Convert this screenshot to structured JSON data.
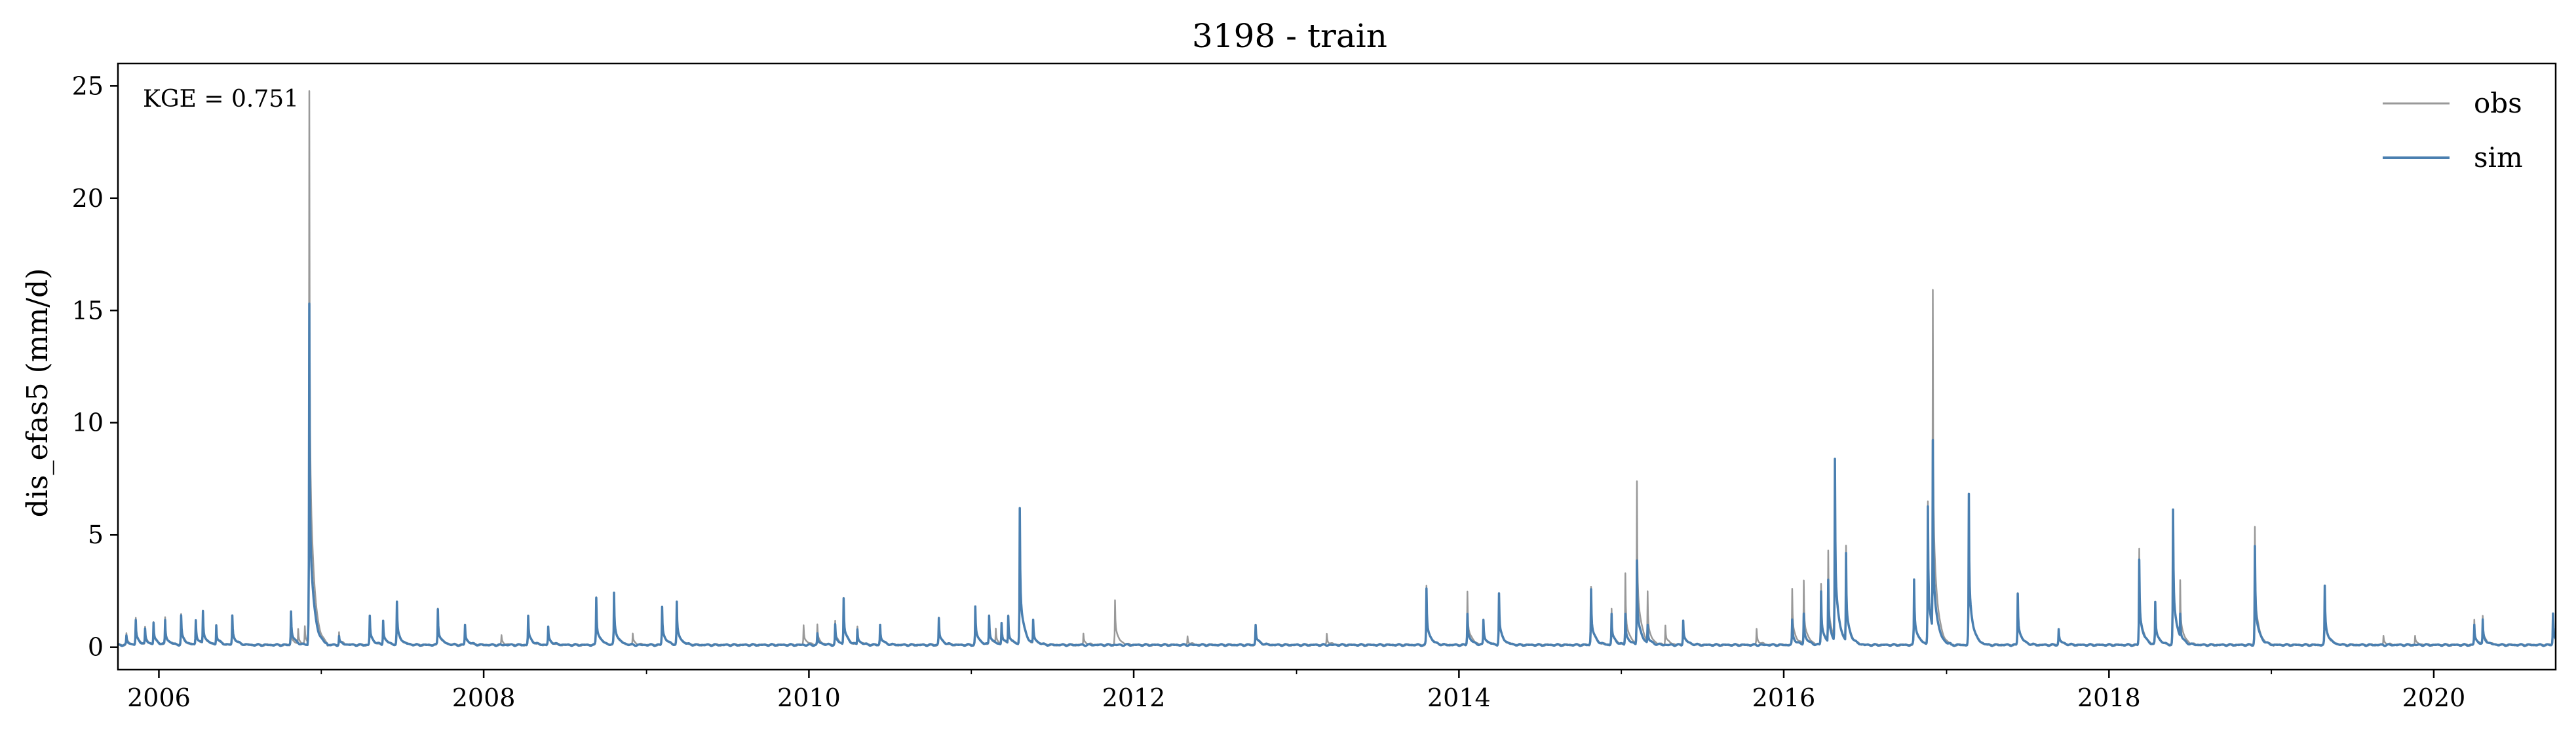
{
  "chart_data": {
    "type": "line",
    "title": "3198 - train",
    "ylabel": "dis_efas5 (mm/d)",
    "xlabel": "",
    "xlim": [
      "2005-10-01",
      "2020-10-01"
    ],
    "ylim": [
      -1,
      26
    ],
    "yticks": [
      0,
      5,
      10,
      15,
      20,
      25
    ],
    "yticklabels": [
      "0",
      "5",
      "10",
      "15",
      "20",
      "25"
    ],
    "xticks": [
      "2006-01-01",
      "2008-01-01",
      "2010-01-01",
      "2012-01-01",
      "2014-01-01",
      "2016-01-01",
      "2018-01-01",
      "2020-01-01"
    ],
    "xticklabels": [
      "2006",
      "2008",
      "2010",
      "2012",
      "2014",
      "2016",
      "2018",
      "2020"
    ],
    "annotation": "KGE = 0.751",
    "grid": false,
    "legend": "top-right",
    "baseflow": 0.1,
    "series": [
      {
        "name": "obs",
        "color": "#999999",
        "peaks": [
          [
            "2005-10-20",
            0.6
          ],
          [
            "2005-11-10",
            1.3
          ],
          [
            "2005-12-01",
            0.9
          ],
          [
            "2005-12-20",
            1.1
          ],
          [
            "2006-01-15",
            1.3
          ],
          [
            "2006-02-20",
            1.5
          ],
          [
            "2006-03-25",
            1.2
          ],
          [
            "2006-04-10",
            1.6
          ],
          [
            "2006-05-10",
            1.0
          ],
          [
            "2006-06-15",
            1.4
          ],
          [
            "2006-10-25",
            0.9
          ],
          [
            "2006-11-10",
            0.8
          ],
          [
            "2006-11-25",
            0.9
          ],
          [
            "2006-12-05",
            24.8
          ],
          [
            "2007-02-10",
            0.7
          ],
          [
            "2007-04-20",
            1.4
          ],
          [
            "2007-05-20",
            1.2
          ],
          [
            "2007-06-20",
            2.0
          ],
          [
            "2007-09-20",
            1.7
          ],
          [
            "2007-11-20",
            1.0
          ],
          [
            "2008-02-10",
            0.5
          ],
          [
            "2008-04-10",
            1.4
          ],
          [
            "2008-05-25",
            0.9
          ],
          [
            "2008-09-10",
            2.2
          ],
          [
            "2008-10-20",
            2.4
          ],
          [
            "2008-12-01",
            0.6
          ],
          [
            "2009-02-05",
            1.8
          ],
          [
            "2009-03-10",
            2.0
          ],
          [
            "2009-12-20",
            1.0
          ],
          [
            "2010-01-20",
            1.0
          ],
          [
            "2010-03-01",
            1.2
          ],
          [
            "2010-03-20",
            2.2
          ],
          [
            "2010-04-20",
            0.9
          ],
          [
            "2010-06-10",
            1.0
          ],
          [
            "2010-10-20",
            1.3
          ],
          [
            "2011-01-10",
            1.8
          ],
          [
            "2011-02-10",
            1.4
          ],
          [
            "2011-02-25",
            0.8
          ],
          [
            "2011-03-10",
            1.1
          ],
          [
            "2011-03-25",
            1.4
          ],
          [
            "2011-04-20",
            6.0
          ],
          [
            "2011-05-20",
            1.2
          ],
          [
            "2011-09-10",
            0.6
          ],
          [
            "2011-11-20",
            2.1
          ],
          [
            "2012-05-01",
            0.5
          ],
          [
            "2012-10-01",
            1.0
          ],
          [
            "2013-03-10",
            0.6
          ],
          [
            "2013-10-20",
            2.7
          ],
          [
            "2014-01-20",
            2.5
          ],
          [
            "2014-02-25",
            1.2
          ],
          [
            "2014-04-01",
            2.4
          ],
          [
            "2014-10-25",
            2.7
          ],
          [
            "2014-12-10",
            1.7
          ],
          [
            "2015-01-10",
            3.3
          ],
          [
            "2015-02-05",
            7.4
          ],
          [
            "2015-03-01",
            2.5
          ],
          [
            "2015-04-10",
            1.0
          ],
          [
            "2015-05-20",
            1.2
          ],
          [
            "2015-11-01",
            0.8
          ],
          [
            "2016-01-20",
            2.6
          ],
          [
            "2016-02-15",
            3.0
          ],
          [
            "2016-03-25",
            2.8
          ],
          [
            "2016-04-10",
            4.3
          ],
          [
            "2016-04-25",
            8.0
          ],
          [
            "2016-05-20",
            4.5
          ],
          [
            "2016-10-20",
            3.0
          ],
          [
            "2016-11-20",
            6.5
          ],
          [
            "2016-12-01",
            15.9
          ],
          [
            "2017-02-20",
            6.8
          ],
          [
            "2017-06-10",
            2.4
          ],
          [
            "2017-09-10",
            0.8
          ],
          [
            "2018-03-10",
            4.4
          ],
          [
            "2018-04-15",
            2.0
          ],
          [
            "2018-05-25",
            6.0
          ],
          [
            "2018-06-10",
            3.0
          ],
          [
            "2018-11-25",
            5.4
          ],
          [
            "2019-05-01",
            2.6
          ],
          [
            "2019-09-10",
            0.5
          ],
          [
            "2019-11-20",
            0.5
          ],
          [
            "2020-04-01",
            1.2
          ],
          [
            "2020-04-20",
            1.4
          ],
          [
            "2020-09-25",
            1.4
          ]
        ]
      },
      {
        "name": "sim",
        "color": "#4a7fb0",
        "peaks": [
          [
            "2005-10-20",
            0.5
          ],
          [
            "2005-11-10",
            1.2
          ],
          [
            "2005-12-01",
            0.8
          ],
          [
            "2005-12-20",
            1.1
          ],
          [
            "2006-01-15",
            1.2
          ],
          [
            "2006-02-20",
            1.4
          ],
          [
            "2006-03-25",
            1.2
          ],
          [
            "2006-04-10",
            1.6
          ],
          [
            "2006-05-10",
            1.0
          ],
          [
            "2006-06-15",
            1.4
          ],
          [
            "2006-10-25",
            1.6
          ],
          [
            "2006-12-05",
            15.3
          ],
          [
            "2007-02-10",
            0.5
          ],
          [
            "2007-04-20",
            1.4
          ],
          [
            "2007-05-20",
            1.2
          ],
          [
            "2007-06-20",
            2.0
          ],
          [
            "2007-09-20",
            1.7
          ],
          [
            "2007-11-20",
            1.0
          ],
          [
            "2008-04-10",
            1.4
          ],
          [
            "2008-05-25",
            0.9
          ],
          [
            "2008-09-10",
            2.2
          ],
          [
            "2008-10-20",
            2.4
          ],
          [
            "2009-02-05",
            1.8
          ],
          [
            "2009-03-10",
            2.0
          ],
          [
            "2010-01-20",
            0.6
          ],
          [
            "2010-03-01",
            1.0
          ],
          [
            "2010-03-20",
            2.2
          ],
          [
            "2010-04-20",
            0.8
          ],
          [
            "2010-06-10",
            1.0
          ],
          [
            "2010-10-20",
            1.3
          ],
          [
            "2011-01-10",
            1.8
          ],
          [
            "2011-02-10",
            1.4
          ],
          [
            "2011-03-10",
            1.1
          ],
          [
            "2011-03-25",
            1.4
          ],
          [
            "2011-04-20",
            6.2
          ],
          [
            "2011-05-20",
            1.2
          ],
          [
            "2012-10-01",
            1.0
          ],
          [
            "2013-10-20",
            2.6
          ],
          [
            "2014-01-20",
            1.5
          ],
          [
            "2014-02-25",
            1.2
          ],
          [
            "2014-04-01",
            2.4
          ],
          [
            "2014-10-25",
            2.6
          ],
          [
            "2014-12-10",
            1.5
          ],
          [
            "2015-01-10",
            1.5
          ],
          [
            "2015-02-05",
            3.9
          ],
          [
            "2015-03-01",
            1.0
          ],
          [
            "2015-05-20",
            1.2
          ],
          [
            "2016-01-20",
            1.2
          ],
          [
            "2016-02-15",
            1.5
          ],
          [
            "2016-03-25",
            2.5
          ],
          [
            "2016-04-10",
            3.0
          ],
          [
            "2016-04-25",
            8.4
          ],
          [
            "2016-05-20",
            4.2
          ],
          [
            "2016-10-20",
            3.0
          ],
          [
            "2016-11-20",
            6.3
          ],
          [
            "2016-12-01",
            9.2
          ],
          [
            "2017-02-20",
            6.8
          ],
          [
            "2017-06-10",
            2.4
          ],
          [
            "2017-09-10",
            0.8
          ],
          [
            "2018-03-10",
            3.9
          ],
          [
            "2018-04-15",
            2.0
          ],
          [
            "2018-05-25",
            6.1
          ],
          [
            "2018-06-10",
            1.5
          ],
          [
            "2018-11-25",
            4.5
          ],
          [
            "2019-05-01",
            2.7
          ],
          [
            "2020-04-01",
            1.0
          ],
          [
            "2020-04-20",
            1.2
          ],
          [
            "2020-09-25",
            1.5
          ]
        ]
      }
    ]
  }
}
